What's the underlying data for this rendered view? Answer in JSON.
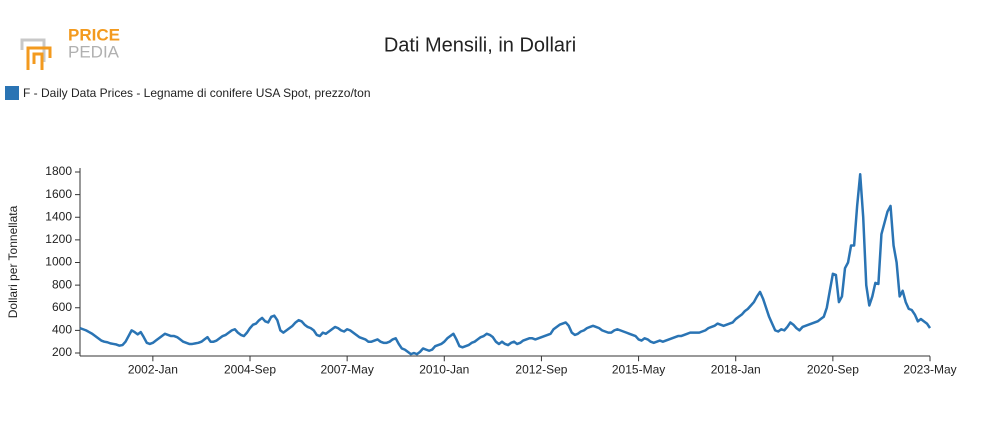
{
  "chart_data": {
    "type": "line",
    "title": "Dati Mensili, in Dollari",
    "logo": [
      "PRICE",
      "PEDIA"
    ],
    "ylabel": "Dollari per Tonnellata",
    "x": [
      "2000-Jan",
      "2000-Feb",
      "2000-Mar",
      "2000-Apr",
      "2000-May",
      "2000-Jun",
      "2000-Jul",
      "2000-Aug",
      "2000-Sep",
      "2000-Oct",
      "2000-Nov",
      "2000-Dec",
      "2001-Jan",
      "2001-Feb",
      "2001-Mar",
      "2001-Apr",
      "2001-May",
      "2001-Jun",
      "2001-Jul",
      "2001-Aug",
      "2001-Sep",
      "2001-Oct",
      "2001-Nov",
      "2001-Dec",
      "2002-Jan",
      "2002-Feb",
      "2002-Mar",
      "2002-Apr",
      "2002-May",
      "2002-Jun",
      "2002-Jul",
      "2002-Aug",
      "2002-Sep",
      "2002-Oct",
      "2002-Nov",
      "2002-Dec",
      "2003-Jan",
      "2003-Feb",
      "2003-Mar",
      "2003-Apr",
      "2003-May",
      "2003-Jun",
      "2003-Jul",
      "2003-Aug",
      "2003-Sep",
      "2003-Oct",
      "2003-Nov",
      "2003-Dec",
      "2004-Jan",
      "2004-Feb",
      "2004-Mar",
      "2004-Apr",
      "2004-May",
      "2004-Jun",
      "2004-Jul",
      "2004-Aug",
      "2004-Sep",
      "2004-Oct",
      "2004-Nov",
      "2004-Dec",
      "2005-Jan",
      "2005-Feb",
      "2005-Mar",
      "2005-Apr",
      "2005-May",
      "2005-Jun",
      "2005-Jul",
      "2005-Aug",
      "2005-Sep",
      "2005-Oct",
      "2005-Nov",
      "2005-Dec",
      "2006-Jan",
      "2006-Feb",
      "2006-Mar",
      "2006-Apr",
      "2006-May",
      "2006-Jun",
      "2006-Jul",
      "2006-Aug",
      "2006-Sep",
      "2006-Oct",
      "2006-Nov",
      "2006-Dec",
      "2007-Jan",
      "2007-Feb",
      "2007-Mar",
      "2007-Apr",
      "2007-May",
      "2007-Jun",
      "2007-Jul",
      "2007-Aug",
      "2007-Sep",
      "2007-Oct",
      "2007-Nov",
      "2007-Dec",
      "2008-Jan",
      "2008-Feb",
      "2008-Mar",
      "2008-Apr",
      "2008-May",
      "2008-Jun",
      "2008-Jul",
      "2008-Aug",
      "2008-Sep",
      "2008-Oct",
      "2008-Nov",
      "2008-Dec",
      "2009-Jan",
      "2009-Feb",
      "2009-Mar",
      "2009-Apr",
      "2009-May",
      "2009-Jun",
      "2009-Jul",
      "2009-Aug",
      "2009-Sep",
      "2009-Oct",
      "2009-Nov",
      "2009-Dec",
      "2010-Jan",
      "2010-Feb",
      "2010-Mar",
      "2010-Apr",
      "2010-May",
      "2010-Jun",
      "2010-Jul",
      "2010-Aug",
      "2010-Sep",
      "2010-Oct",
      "2010-Nov",
      "2010-Dec",
      "2011-Jan",
      "2011-Feb",
      "2011-Mar",
      "2011-Apr",
      "2011-May",
      "2011-Jun",
      "2011-Jul",
      "2011-Aug",
      "2011-Sep",
      "2011-Oct",
      "2011-Nov",
      "2011-Dec",
      "2012-Jan",
      "2012-Feb",
      "2012-Mar",
      "2012-Apr",
      "2012-May",
      "2012-Jun",
      "2012-Jul",
      "2012-Aug",
      "2012-Sep",
      "2012-Oct",
      "2012-Nov",
      "2012-Dec",
      "2013-Jan",
      "2013-Feb",
      "2013-Mar",
      "2013-Apr",
      "2013-May",
      "2013-Jun",
      "2013-Jul",
      "2013-Aug",
      "2013-Sep",
      "2013-Oct",
      "2013-Nov",
      "2013-Dec",
      "2014-Jan",
      "2014-Feb",
      "2014-Mar",
      "2014-Apr",
      "2014-May",
      "2014-Jun",
      "2014-Jul",
      "2014-Aug",
      "2014-Sep",
      "2014-Oct",
      "2014-Nov",
      "2014-Dec",
      "2015-Jan",
      "2015-Feb",
      "2015-Mar",
      "2015-Apr",
      "2015-May",
      "2015-Jun",
      "2015-Jul",
      "2015-Aug",
      "2015-Sep",
      "2015-Oct",
      "2015-Nov",
      "2015-Dec",
      "2016-Jan",
      "2016-Feb",
      "2016-Mar",
      "2016-Apr",
      "2016-May",
      "2016-Jun",
      "2016-Jul",
      "2016-Aug",
      "2016-Sep",
      "2016-Oct",
      "2016-Nov",
      "2016-Dec",
      "2017-Jan",
      "2017-Feb",
      "2017-Mar",
      "2017-Apr",
      "2017-May",
      "2017-Jun",
      "2017-Jul",
      "2017-Aug",
      "2017-Sep",
      "2017-Oct",
      "2017-Nov",
      "2017-Dec",
      "2018-Jan",
      "2018-Feb",
      "2018-Mar",
      "2018-Apr",
      "2018-May",
      "2018-Jun",
      "2018-Jul",
      "2018-Aug",
      "2018-Sep",
      "2018-Oct",
      "2018-Nov",
      "2018-Dec",
      "2019-Jan",
      "2019-Feb",
      "2019-Mar",
      "2019-Apr",
      "2019-May",
      "2019-Jun",
      "2019-Jul",
      "2019-Aug",
      "2019-Sep",
      "2019-Oct",
      "2019-Nov",
      "2019-Dec",
      "2020-Jan",
      "2020-Feb",
      "2020-Mar",
      "2020-Apr",
      "2020-May",
      "2020-Jun",
      "2020-Jul",
      "2020-Aug",
      "2020-Sep",
      "2020-Oct",
      "2020-Nov",
      "2020-Dec",
      "2021-Jan",
      "2021-Feb",
      "2021-Mar",
      "2021-Apr",
      "2021-May",
      "2021-Jun",
      "2021-Jul",
      "2021-Aug",
      "2021-Sep",
      "2021-Oct",
      "2021-Nov",
      "2021-Dec",
      "2022-Jan",
      "2022-Feb",
      "2022-Mar",
      "2022-Apr",
      "2022-May",
      "2022-Jun",
      "2022-Jul",
      "2022-Aug",
      "2022-Sep",
      "2022-Oct",
      "2022-Nov",
      "2022-Dec",
      "2023-Jan",
      "2023-Feb",
      "2023-Mar",
      "2023-Apr",
      "2023-May"
    ],
    "series": [
      {
        "name": "F - Daily Data Prices - Legname di conifere USA Spot, prezzo/ton",
        "color": "#2a74b4",
        "values": [
          420,
          410,
          400,
          385,
          370,
          350,
          330,
          310,
          300,
          295,
          285,
          280,
          275,
          265,
          270,
          300,
          350,
          400,
          385,
          365,
          385,
          340,
          290,
          280,
          290,
          310,
          330,
          350,
          370,
          360,
          350,
          350,
          340,
          320,
          300,
          290,
          280,
          280,
          285,
          290,
          300,
          320,
          340,
          300,
          300,
          310,
          330,
          350,
          360,
          380,
          400,
          410,
          380,
          360,
          350,
          380,
          420,
          450,
          460,
          490,
          510,
          480,
          470,
          520,
          530,
          490,
          400,
          380,
          400,
          420,
          440,
          470,
          490,
          480,
          450,
          430,
          420,
          400,
          360,
          350,
          380,
          370,
          390,
          410,
          430,
          420,
          400,
          390,
          410,
          400,
          380,
          360,
          340,
          330,
          320,
          300,
          300,
          310,
          320,
          300,
          290,
          290,
          300,
          320,
          330,
          280,
          240,
          230,
          210,
          190,
          200,
          190,
          210,
          240,
          230,
          220,
          230,
          260,
          270,
          280,
          300,
          330,
          350,
          370,
          320,
          260,
          250,
          260,
          270,
          290,
          300,
          320,
          340,
          350,
          370,
          360,
          340,
          300,
          280,
          300,
          280,
          270,
          290,
          300,
          280,
          290,
          310,
          320,
          330,
          330,
          320,
          330,
          340,
          350,
          360,
          370,
          410,
          430,
          450,
          460,
          470,
          440,
          380,
          360,
          370,
          390,
          400,
          420,
          430,
          440,
          430,
          420,
          400,
          390,
          380,
          380,
          400,
          410,
          400,
          390,
          380,
          370,
          360,
          350,
          320,
          310,
          330,
          320,
          300,
          290,
          300,
          310,
          300,
          310,
          320,
          330,
          340,
          350,
          350,
          360,
          370,
          380,
          380,
          380,
          380,
          390,
          400,
          420,
          430,
          440,
          460,
          450,
          440,
          450,
          460,
          470,
          500,
          520,
          540,
          570,
          590,
          620,
          650,
          700,
          740,
          680,
          600,
          520,
          460,
          400,
          390,
          410,
          400,
          430,
          470,
          450,
          420,
          400,
          430,
          440,
          450,
          460,
          470,
          480,
          500,
          520,
          600,
          750,
          900,
          890,
          650,
          700,
          950,
          1000,
          1150,
          1150,
          1500,
          1780,
          1400,
          800,
          620,
          700,
          820,
          810,
          1250,
          1350,
          1450,
          1500,
          1150,
          1000,
          700,
          750,
          650,
          590,
          580,
          540,
          480,
          500,
          480,
          460,
          420
        ]
      }
    ],
    "xticks": [
      "2002-Jan",
      "2004-Sep",
      "2007-May",
      "2010-Jan",
      "2012-Sep",
      "2015-May",
      "2018-Jan",
      "2020-Sep",
      "2023-May"
    ],
    "ylim": [
      180,
      1800
    ],
    "yticks": [
      200,
      400,
      600,
      800,
      1000,
      1200,
      1400,
      1600,
      1800
    ],
    "grid": false
  }
}
